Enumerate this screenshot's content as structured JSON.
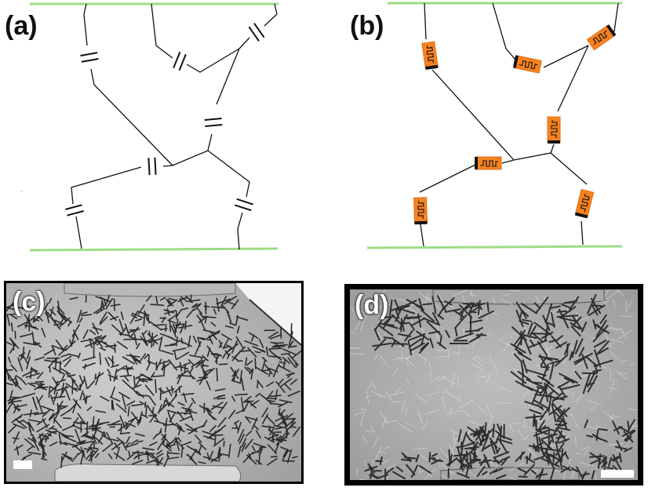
{
  "figure": {
    "panels": [
      {
        "id": "a",
        "label": "(a)",
        "kind": "capacitor-network"
      },
      {
        "id": "b",
        "label": "(b)",
        "kind": "resistor-network"
      },
      {
        "id": "c",
        "label": "(c)",
        "kind": "micrograph-dense"
      },
      {
        "id": "d",
        "label": "(d)",
        "kind": "micrograph-sparse"
      }
    ],
    "colors": {
      "electrode": "#9ddc86",
      "wire": "#111111",
      "resistor_fill": "#f58220",
      "micrograph_frame": "#000000"
    },
    "icons": {
      "capacitor": "capacitor-symbol",
      "resistor": "resistor-symbol"
    }
  }
}
